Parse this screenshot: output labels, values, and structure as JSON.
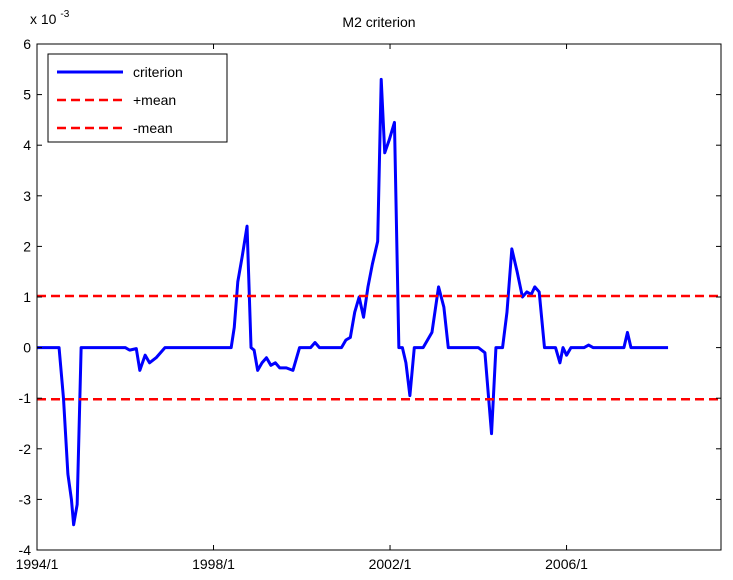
{
  "chart_data": {
    "type": "line",
    "title": "M2 criterion",
    "xlabel": "",
    "ylabel": "",
    "y_exponent_label": {
      "base": "x 10",
      "exp": "-3"
    },
    "x_range": [
      1994.0,
      2009.5
    ],
    "ylim": [
      -4,
      6
    ],
    "y_ticks": [
      -4,
      -3,
      -2,
      -1,
      0,
      1,
      2,
      3,
      4,
      5,
      6
    ],
    "x_ticks": [
      {
        "x": 1994.0,
        "label": "1994/1"
      },
      {
        "x": 1998.0,
        "label": "1998/1"
      },
      {
        "x": 2002.0,
        "label": "2002/1"
      },
      {
        "x": 2006.0,
        "label": "2006/1"
      }
    ],
    "grid": false,
    "legend_position": "top-left",
    "series": [
      {
        "name": "criterion",
        "color": "#0000ff",
        "style": "solid",
        "points": [
          [
            1994.0,
            0.0
          ],
          [
            1994.5,
            0.0
          ],
          [
            1994.6,
            -1.0
          ],
          [
            1994.7,
            -2.5
          ],
          [
            1994.78,
            -3.0
          ],
          [
            1994.83,
            -3.5
          ],
          [
            1994.91,
            -3.1
          ],
          [
            1995.0,
            0.0
          ],
          [
            1996.0,
            0.0
          ],
          [
            1996.1,
            -0.05
          ],
          [
            1996.25,
            -0.02
          ],
          [
            1996.33,
            -0.45
          ],
          [
            1996.45,
            -0.15
          ],
          [
            1996.55,
            -0.3
          ],
          [
            1996.7,
            -0.2
          ],
          [
            1996.9,
            0.0
          ],
          [
            1998.4,
            0.0
          ],
          [
            1998.47,
            0.4
          ],
          [
            1998.55,
            1.3
          ],
          [
            1998.65,
            1.8
          ],
          [
            1998.76,
            2.4
          ],
          [
            1998.85,
            0.0
          ],
          [
            1998.92,
            -0.05
          ],
          [
            1999.0,
            -0.45
          ],
          [
            1999.1,
            -0.3
          ],
          [
            1999.2,
            -0.2
          ],
          [
            1999.3,
            -0.35
          ],
          [
            1999.4,
            -0.3
          ],
          [
            1999.5,
            -0.4
          ],
          [
            1999.65,
            -0.4
          ],
          [
            1999.8,
            -0.45
          ],
          [
            1999.95,
            0.0
          ],
          [
            2000.2,
            0.0
          ],
          [
            2000.3,
            0.1
          ],
          [
            2000.4,
            0.0
          ],
          [
            2000.9,
            0.0
          ],
          [
            2001.0,
            0.15
          ],
          [
            2001.1,
            0.2
          ],
          [
            2001.2,
            0.7
          ],
          [
            2001.3,
            1.0
          ],
          [
            2001.4,
            0.6
          ],
          [
            2001.5,
            1.2
          ],
          [
            2001.6,
            1.65
          ],
          [
            2001.72,
            2.1
          ],
          [
            2001.8,
            5.3
          ],
          [
            2001.88,
            3.85
          ],
          [
            2001.98,
            4.1
          ],
          [
            2002.1,
            4.45
          ],
          [
            2002.2,
            0.0
          ],
          [
            2002.28,
            0.0
          ],
          [
            2002.36,
            -0.3
          ],
          [
            2002.45,
            -0.95
          ],
          [
            2002.55,
            0.0
          ],
          [
            2002.75,
            0.0
          ],
          [
            2002.95,
            0.3
          ],
          [
            2003.1,
            1.2
          ],
          [
            2003.22,
            0.8
          ],
          [
            2003.32,
            0.0
          ],
          [
            2004.0,
            0.0
          ],
          [
            2004.15,
            -0.1
          ],
          [
            2004.3,
            -1.7
          ],
          [
            2004.4,
            0.0
          ],
          [
            2004.55,
            0.0
          ],
          [
            2004.65,
            0.7
          ],
          [
            2004.76,
            1.95
          ],
          [
            2004.88,
            1.5
          ],
          [
            2005.0,
            1.0
          ],
          [
            2005.1,
            1.1
          ],
          [
            2005.2,
            1.05
          ],
          [
            2005.28,
            1.2
          ],
          [
            2005.38,
            1.1
          ],
          [
            2005.5,
            0.0
          ],
          [
            2005.75,
            0.0
          ],
          [
            2005.85,
            -0.3
          ],
          [
            2005.92,
            0.0
          ],
          [
            2006.0,
            -0.15
          ],
          [
            2006.1,
            0.0
          ],
          [
            2006.4,
            0.0
          ],
          [
            2006.5,
            0.05
          ],
          [
            2006.6,
            0.0
          ],
          [
            2007.3,
            0.0
          ],
          [
            2007.38,
            0.3
          ],
          [
            2007.46,
            0.0
          ],
          [
            2008.3,
            0.0
          ]
        ]
      },
      {
        "name": "+mean",
        "color": "#ff0000",
        "style": "dashed",
        "points": [
          [
            1994.0,
            1.02
          ],
          [
            2009.5,
            1.02
          ]
        ]
      },
      {
        "name": "-mean",
        "color": "#ff0000",
        "style": "dashed",
        "points": [
          [
            1994.0,
            -1.02
          ],
          [
            2009.5,
            -1.02
          ]
        ]
      }
    ]
  }
}
